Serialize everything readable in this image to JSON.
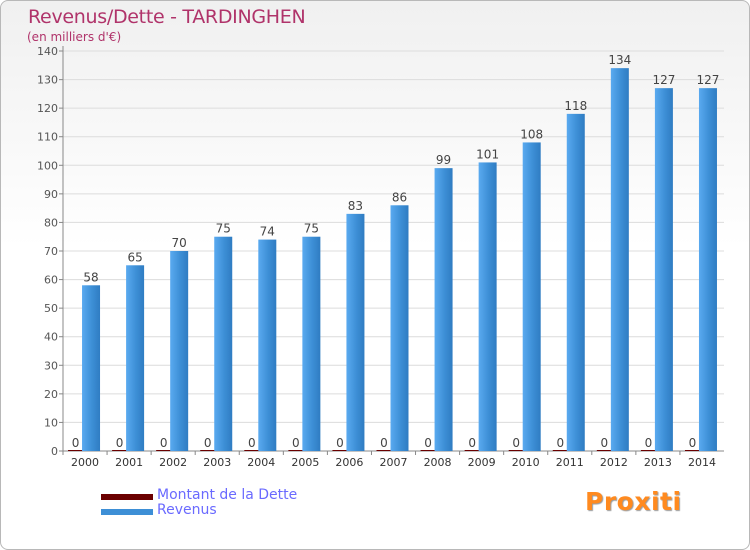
{
  "chart_data": {
    "type": "bar",
    "title": "Revenus/Dette - TARDINGHEN",
    "subtitle": "(en milliers d'€)",
    "categories": [
      "2000",
      "2001",
      "2002",
      "2003",
      "2004",
      "2005",
      "2006",
      "2007",
      "2008",
      "2009",
      "2010",
      "2011",
      "2012",
      "2013",
      "2014"
    ],
    "series": [
      {
        "name": "Montant de la Dette",
        "color": "#6b0000",
        "values": [
          0,
          0,
          0,
          0,
          0,
          0,
          0,
          0,
          0,
          0,
          0,
          0,
          0,
          0,
          0
        ]
      },
      {
        "name": "Revenus",
        "color": "#3d8fd6",
        "values": [
          58,
          65,
          70,
          75,
          74,
          75,
          83,
          86,
          99,
          101,
          108,
          118,
          134,
          127,
          127
        ]
      }
    ],
    "ylim": [
      0,
      140
    ],
    "yticks": [
      0,
      10,
      20,
      30,
      40,
      50,
      60,
      70,
      80,
      90,
      100,
      110,
      120,
      130,
      140
    ],
    "grid": true,
    "legend_position": "bottom-left"
  },
  "logo": {
    "text": "Proxiti"
  }
}
